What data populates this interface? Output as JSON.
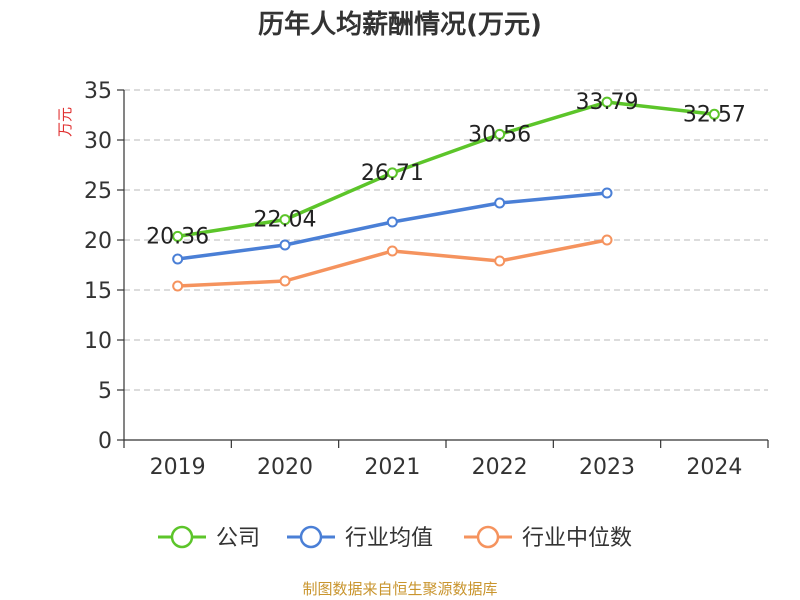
{
  "chart_data": {
    "type": "line",
    "title": "历年人均薪酬情况(万元)",
    "xlabel": "",
    "ylabel": "万元",
    "categories": [
      "2019",
      "2020",
      "2021",
      "2022",
      "2023",
      "2024"
    ],
    "ylim": [
      0,
      35
    ],
    "yticks": [
      0,
      5,
      10,
      15,
      20,
      25,
      30,
      35
    ],
    "grid": true,
    "legend_position": "bottom",
    "series": [
      {
        "name": "公司",
        "color": "#5cc52a",
        "values": [
          20.36,
          22.04,
          26.71,
          30.56,
          33.79,
          32.57
        ],
        "labels": [
          "20.36",
          "22.04",
          "26.71",
          "30.56",
          "33.79",
          "32.57"
        ]
      },
      {
        "name": "行业均值",
        "color": "#4a7fd6",
        "values": [
          18.1,
          19.5,
          21.8,
          23.7,
          24.7,
          null
        ]
      },
      {
        "name": "行业中位数",
        "color": "#f5935e",
        "values": [
          15.4,
          15.9,
          18.9,
          17.9,
          20.0,
          null
        ]
      }
    ],
    "source": "制图数据来自恒生聚源数据库"
  }
}
